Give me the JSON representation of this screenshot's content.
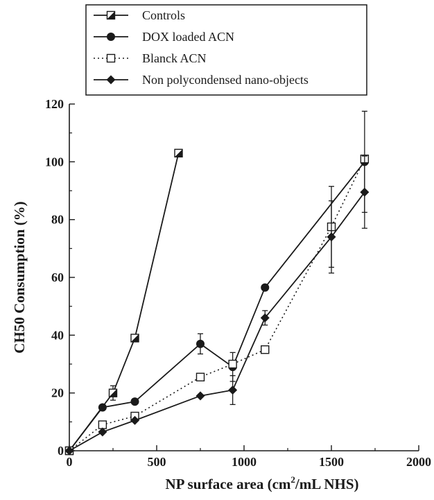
{
  "chart_data": {
    "type": "line",
    "xlabel": "NP surface area (cm",
    "xlabel_sup": "2",
    "xlabel_rest": "/mL NHS)",
    "ylabel": "CH50 Consumption  (%)",
    "xlim": [
      0,
      2000
    ],
    "ylim": [
      0,
      120
    ],
    "xticks": [
      0,
      500,
      1000,
      1500,
      2000
    ],
    "yticks": [
      0,
      20,
      40,
      60,
      80,
      100,
      120
    ],
    "grid": false,
    "legend_position": "top",
    "series": [
      {
        "name": "Controls",
        "marker": "half-filled-square",
        "line": "solid",
        "x": [
          0,
          250,
          375,
          625
        ],
        "y": [
          0,
          20,
          39,
          103
        ],
        "err": [
          0,
          2.5,
          0,
          0
        ]
      },
      {
        "name": "DOX loaded ACN",
        "marker": "filled-circle",
        "line": "solid",
        "x": [
          0,
          190,
          375,
          750,
          935,
          1120,
          1690
        ],
        "y": [
          0,
          15,
          17,
          37,
          29,
          56.5,
          100
        ],
        "err": [
          0,
          0,
          0,
          3.5,
          5,
          0,
          17.5
        ]
      },
      {
        "name": "Blanck ACN",
        "marker": "open-square",
        "line": "dotted",
        "x": [
          0,
          190,
          375,
          750,
          935,
          1120,
          1500,
          1690
        ],
        "y": [
          0,
          9,
          12,
          25.5,
          30,
          35,
          77.5,
          101
        ],
        "err": [
          0,
          0,
          0,
          0,
          0,
          0,
          14,
          0
        ]
      },
      {
        "name": "Non polycondensed nano-objects",
        "marker": "filled-diamond",
        "line": "solid",
        "x": [
          0,
          190,
          375,
          750,
          935,
          1120,
          1500,
          1690
        ],
        "y": [
          0,
          6.5,
          10.5,
          19,
          21,
          46,
          74,
          89.5
        ],
        "err": [
          0,
          0,
          0,
          0,
          5,
          2.5,
          12.5,
          12.5
        ]
      }
    ]
  }
}
